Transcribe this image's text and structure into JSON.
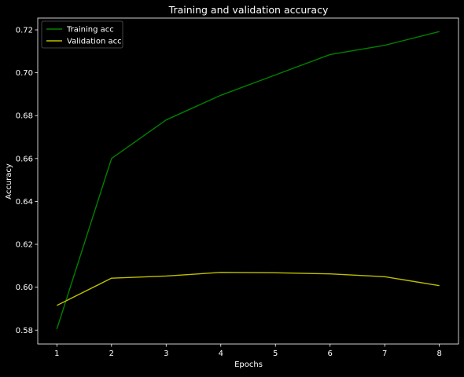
{
  "chart_data": {
    "type": "line",
    "title": "Training and validation accuracy",
    "xlabel": "Epochs",
    "ylabel": "Accuracy",
    "x": [
      1,
      2,
      3,
      4,
      5,
      6,
      7,
      8
    ],
    "xlim": [
      0.65,
      8.35
    ],
    "ylim": [
      0.5735,
      0.7255
    ],
    "xticks": [
      1,
      2,
      3,
      4,
      5,
      6,
      7,
      8
    ],
    "yticks": [
      0.58,
      0.6,
      0.62,
      0.64,
      0.66,
      0.68,
      0.7,
      0.72
    ],
    "ytick_labels": [
      "0.58",
      "0.60",
      "0.62",
      "0.64",
      "0.66",
      "0.68",
      "0.70",
      "0.72"
    ],
    "grid": false,
    "legend_position": "top-left",
    "series": [
      {
        "name": "Training acc",
        "color": "#008000",
        "values": [
          0.5805,
          0.66,
          0.678,
          0.6895,
          0.699,
          0.7085,
          0.7128,
          0.7192
        ]
      },
      {
        "name": "Validation acc",
        "color": "#bfbf00",
        "values": [
          0.5915,
          0.6042,
          0.6052,
          0.6069,
          0.6067,
          0.6062,
          0.6049,
          0.6007
        ]
      }
    ]
  },
  "theme": {
    "background": "#000000",
    "axis_color": "#ffffff",
    "text_color": "#ffffff",
    "legend_frame": "#555555"
  }
}
